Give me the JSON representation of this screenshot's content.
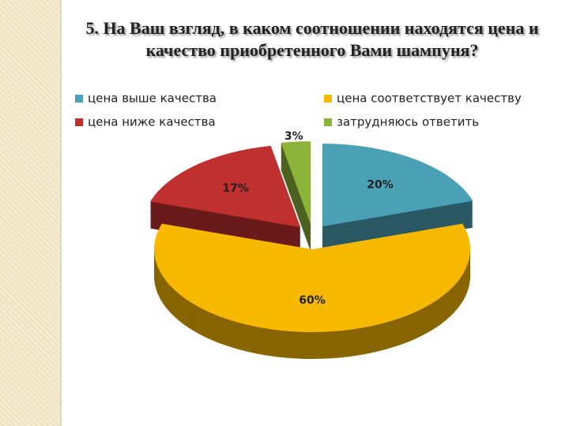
{
  "chart_data": {
    "type": "pie",
    "title": "5. На Ваш взгляд, в каком соотношении находятся цена и качество приобретенного Вами шампуня?",
    "categories": [
      "цена выше качества",
      "цена соответствует качеству",
      "цена ниже качества",
      "затрудняюсь ответить"
    ],
    "values": [
      20,
      60,
      17,
      3
    ],
    "value_labels": [
      "20%",
      "60%",
      "17%",
      "3%"
    ],
    "colors": [
      "#4aa0b5",
      "#f7b800",
      "#c0302f",
      "#8cb33a"
    ]
  }
}
